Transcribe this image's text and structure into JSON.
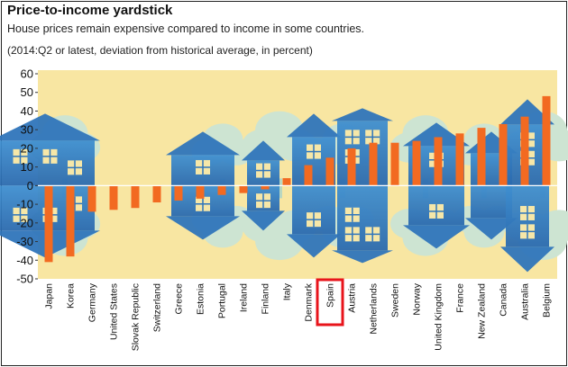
{
  "title": "Price-to-income yardstick",
  "subtitle": "House prices remain expensive compared to income in some countries.",
  "note": "(2014:Q2 or latest, deviation from historical average, in percent)",
  "chart_data": {
    "type": "bar",
    "title": "Price-to-income yardstick",
    "ylim": [
      -50,
      60
    ],
    "yticks": [
      60,
      50,
      40,
      30,
      20,
      10,
      0,
      -10,
      -20,
      -30,
      -40,
      -50
    ],
    "grid": false,
    "categories": [
      "Japan",
      "Korea",
      "Germany",
      "United States",
      "Slovak Republic",
      "Switzerland",
      "Greece",
      "Estonia",
      "Portugal",
      "Ireland",
      "Finland",
      "Italy",
      "Denmark",
      "Spain",
      "Austria",
      "Netherlands",
      "Sweden",
      "Norway",
      "United Kingdom",
      "France",
      "New Zealand",
      "Canada",
      "Australia",
      "Belgium"
    ],
    "values": [
      -41,
      -38,
      -14,
      -13,
      -12,
      -9,
      -8,
      -7,
      -5,
      -4,
      -2,
      4,
      11,
      15,
      20,
      23,
      23,
      24,
      26,
      28,
      31,
      33,
      37,
      48
    ],
    "highlighted_category": "Spain",
    "colors": {
      "bar": "#f26a21",
      "background": "#f8e6a2",
      "house": "#3a86c8",
      "tree": "#cde4d2",
      "highlight_box": "#e8141b"
    }
  }
}
